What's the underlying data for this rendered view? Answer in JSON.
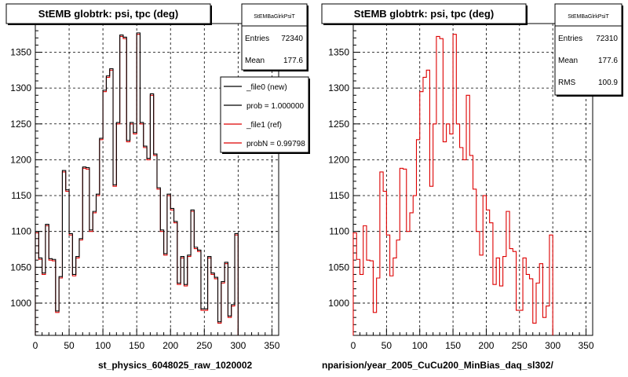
{
  "chart_data": [
    {
      "type": "line",
      "title": "StEMB globtrk: psi, tpc (deg)",
      "xlabel": "st_physics_6048025_raw_1020002",
      "ylabel": "",
      "xlim": [
        0,
        360
      ],
      "ylim": [
        955,
        1390
      ],
      "grid": true,
      "x_ticks": [
        0,
        50,
        100,
        150,
        200,
        250,
        300,
        350
      ],
      "y_ticks": [
        1000,
        1050,
        1100,
        1150,
        1200,
        1250,
        1300,
        1350
      ],
      "bin_width": 5,
      "stats": {
        "name": "StEMBaGlrkPsiT",
        "rows": [
          {
            "label": "Entries",
            "value": "72340"
          },
          {
            "label": "Mean",
            "value": "177.6"
          }
        ]
      },
      "legend": {
        "position": "top-right",
        "entries": [
          {
            "label": "_file0 (new)",
            "color": "#000000"
          },
          {
            "label": "prob = 1.000000",
            "color": "#000000"
          },
          {
            "label": "_file1 (ref)",
            "color": "#dd0000"
          },
          {
            "label": "probN = 0.99798",
            "color": "#dd0000"
          }
        ]
      },
      "series": [
        {
          "color": "#dd0000",
          "values": [
            1098,
            1061,
            1040,
            1108,
            1060,
            1059,
            987,
            1035,
            1183,
            1156,
            1095,
            1038,
            1063,
            1088,
            1188,
            1187,
            1100,
            1126,
            1150,
            1228,
            1295,
            1315,
            1325,
            1163,
            1250,
            1372,
            1369,
            1225,
            1250,
            1236,
            1375,
            1250,
            1217,
            1200,
            1290,
            1206,
            1159,
            1100,
            1067,
            1150,
            1130,
            1112,
            1026,
            1063,
            1024,
            1065,
            1128,
            1076,
            1072,
            990,
            990,
            1063,
            1040,
            1034,
            972,
            1028,
            1055,
            980,
            996,
            1095
          ]
        },
        {
          "color": "#000000",
          "values": [
            1100,
            1063,
            1042,
            1110,
            1062,
            1061,
            989,
            1037,
            1185,
            1158,
            1097,
            1040,
            1065,
            1090,
            1190,
            1189,
            1102,
            1128,
            1152,
            1230,
            1297,
            1317,
            1327,
            1165,
            1252,
            1374,
            1371,
            1227,
            1252,
            1238,
            1377,
            1252,
            1219,
            1202,
            1292,
            1208,
            1161,
            1102,
            1069,
            1152,
            1132,
            1114,
            1028,
            1065,
            1026,
            1067,
            1130,
            1078,
            1074,
            992,
            992,
            1065,
            1042,
            1036,
            974,
            1030,
            1057,
            982,
            998,
            1097
          ]
        }
      ]
    },
    {
      "type": "line",
      "title": "StEMB globtrk: psi, tpc (deg)",
      "xlabel": "nparision/year_2005_CuCu200_MinBias_daq_sl302/",
      "ylabel": "",
      "xlim": [
        0,
        360
      ],
      "ylim": [
        955,
        1390
      ],
      "grid": true,
      "x_ticks": [
        0,
        50,
        100,
        150,
        200,
        250,
        300,
        350
      ],
      "y_ticks": [
        1000,
        1050,
        1100,
        1150,
        1200,
        1250,
        1300,
        1350
      ],
      "bin_width": 5,
      "stats": {
        "name": "StEMBaGlrkPsiT",
        "rows": [
          {
            "label": "Entries",
            "value": "72310"
          },
          {
            "label": "Mean",
            "value": "177.6"
          },
          {
            "label": "RMS",
            "value": "100.9"
          }
        ]
      },
      "series": [
        {
          "color": "#dd0000",
          "values": [
            1098,
            1061,
            1040,
            1108,
            1060,
            1059,
            987,
            1035,
            1183,
            1156,
            1095,
            1038,
            1063,
            1088,
            1188,
            1187,
            1100,
            1126,
            1150,
            1228,
            1295,
            1315,
            1325,
            1163,
            1250,
            1372,
            1369,
            1225,
            1250,
            1236,
            1375,
            1250,
            1217,
            1200,
            1290,
            1206,
            1159,
            1100,
            1067,
            1150,
            1130,
            1112,
            1026,
            1063,
            1024,
            1065,
            1128,
            1076,
            1072,
            990,
            990,
            1063,
            1040,
            1034,
            972,
            1028,
            1055,
            980,
            996,
            1095
          ]
        }
      ]
    }
  ]
}
